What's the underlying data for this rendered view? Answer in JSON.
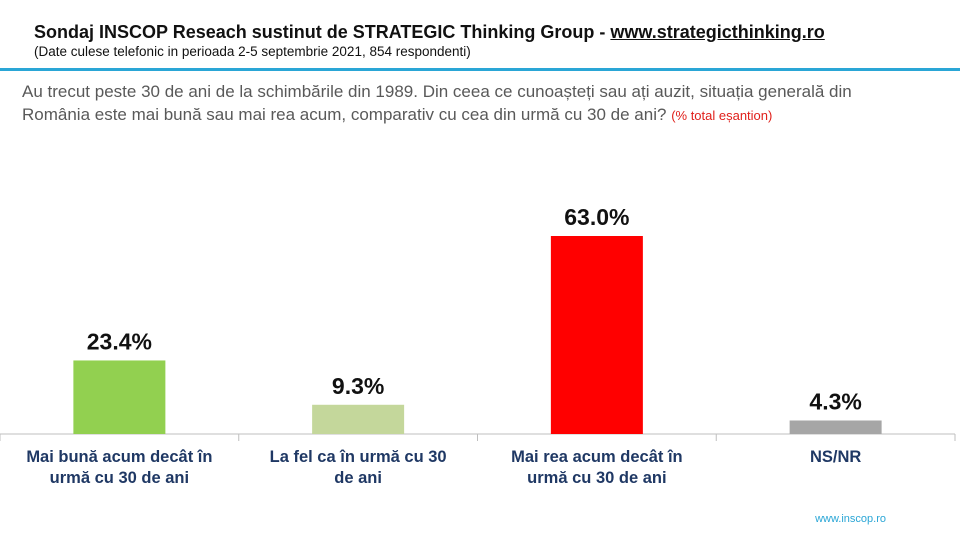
{
  "header": {
    "title_prefix": "Sondaj INSCOP Reseach sustinut de STRATEGIC Thinking Group - ",
    "title_link": "www.strategicthinking.ro",
    "subtitle": "(Date culese telefonic in perioada 2-5 septembrie 2021, 854 respondenti)"
  },
  "question": {
    "text": "Au trecut peste 30 de ani de la schimbările din 1989. Din ceea ce cunoașteți sau ați auzit, situația generală din România este mai bună sau mai rea acum, comparativ cu cea din urmă cu 30 de ani?",
    "note": "(% total eșantion)"
  },
  "footer": {
    "url": "www.inscop.ro"
  },
  "chart_data": {
    "type": "bar",
    "categories": [
      "Mai bună acum decât în urmă cu 30 de ani",
      "La fel ca în urmă cu 30 de ani",
      "Mai rea acum decât în urmă cu 30 de ani",
      "NS/NR"
    ],
    "values": [
      23.4,
      9.3,
      63.0,
      4.3
    ],
    "value_labels": [
      "23.4%",
      "9.3%",
      "63.0%",
      "4.3%"
    ],
    "colors": [
      "#92d050",
      "#c4d79b",
      "#ff0000",
      "#a6a6a6"
    ],
    "title": "",
    "xlabel": "",
    "ylabel": "",
    "ylim": [
      0,
      70
    ],
    "grid": false,
    "legend": "none"
  }
}
